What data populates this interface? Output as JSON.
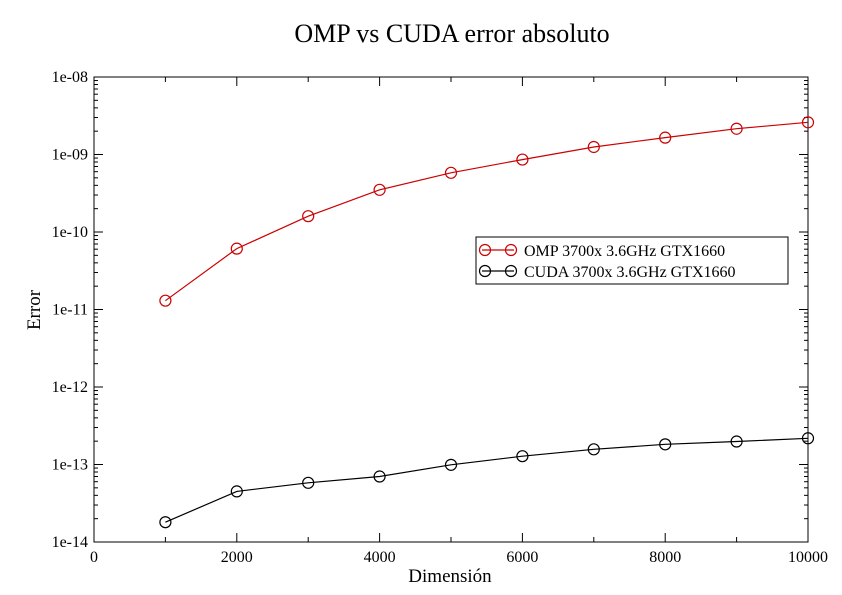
{
  "chart_data": {
    "type": "line",
    "title": "OMP vs CUDA error absoluto",
    "xlabel": "Dimensión",
    "ylabel": "Error",
    "xlim": [
      0,
      10000
    ],
    "ylim": [
      1e-14,
      1e-08
    ],
    "yscale": "log",
    "grid": false,
    "legend_position": "right",
    "xticks": [
      0,
      2000,
      4000,
      6000,
      8000,
      10000
    ],
    "xtick_labels": [
      "0",
      "2000",
      "4000",
      "6000",
      "8000",
      "10000"
    ],
    "yticks": [
      1e-14,
      1e-13,
      1e-12,
      1e-11,
      1e-10,
      1e-09,
      1e-08
    ],
    "ytick_labels": [
      "1e-14",
      "1e-13",
      "1e-12",
      "1e-11",
      "1e-10",
      "1e-09",
      "1e-08"
    ],
    "x": [
      1000,
      2000,
      3000,
      4000,
      5000,
      6000,
      7000,
      8000,
      9000,
      10000
    ],
    "series": [
      {
        "name": "OMP 3700x 3.6GHz GTX1660",
        "color": "#cc0000",
        "marker": "circle",
        "values": [
          1.3e-11,
          6.1e-11,
          1.6e-10,
          3.5e-10,
          5.8e-10,
          8.6e-10,
          1.25e-09,
          1.65e-09,
          2.15e-09,
          2.6e-09
        ]
      },
      {
        "name": "CUDA 3700x 3.6GHz GTX1660",
        "color": "#000000",
        "marker": "circle",
        "values": [
          1.8e-14,
          4.5e-14,
          5.8e-14,
          7e-14,
          9.9e-14,
          1.28e-13,
          1.57e-13,
          1.82e-13,
          1.98e-13,
          2.18e-13
        ]
      }
    ]
  }
}
